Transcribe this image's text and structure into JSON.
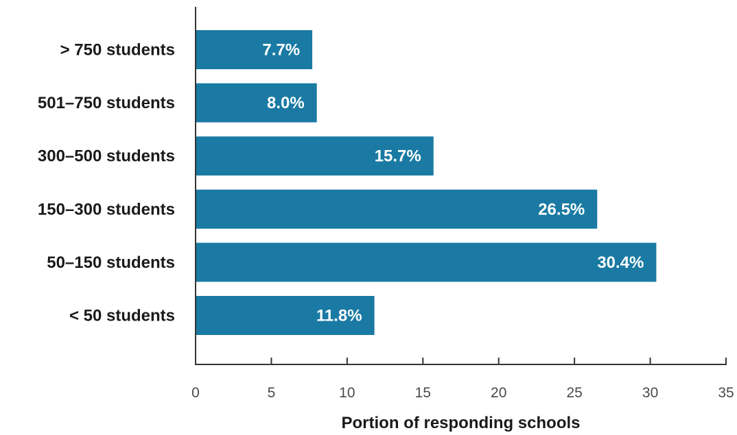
{
  "chart_data": {
    "type": "bar",
    "orientation": "horizontal",
    "categories": [
      "> 750 students",
      "501–750 students",
      "300–500 students",
      "150–300 students",
      "50–150 students",
      "< 50 students"
    ],
    "values": [
      7.7,
      8.0,
      15.7,
      26.5,
      30.4,
      11.8
    ],
    "data_labels": [
      "7.7%",
      "8.0%",
      "15.7%",
      "26.5%",
      "30.4%",
      "11.8%"
    ],
    "xlabel": "Portion of responding schools",
    "ylabel": "",
    "xlim": [
      0,
      35
    ],
    "xticks": [
      0,
      5,
      10,
      15,
      20,
      25,
      30,
      35
    ],
    "grid": false,
    "bar_color": "#1a7aa3"
  }
}
